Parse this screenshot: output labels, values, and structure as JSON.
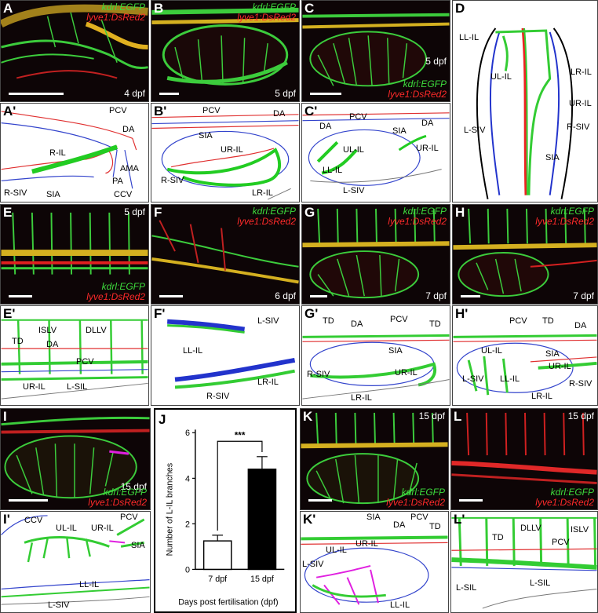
{
  "panels": {
    "A": {
      "label": "A",
      "stage": "4 dpf",
      "green": "kdrl:EGFP",
      "red": "lyve1:DsRed2"
    },
    "B": {
      "label": "B",
      "stage": "5 dpf",
      "green": "kdrl:EGFP",
      "red": "lyve1:DsRed2"
    },
    "C": {
      "label": "C",
      "stage": "5 dpf",
      "green": "kdrl:EGFP",
      "red": "lyve1:DsRed2"
    },
    "D": {
      "label": "D",
      "labels": [
        "LL-IL",
        "LR-IL",
        "UL-IL",
        "UR-IL",
        "R-SIV",
        "L-SIV",
        "SIA"
      ]
    },
    "A2": {
      "label": "A'",
      "labels": [
        "PCV",
        "DA",
        "R-IL",
        "AMA",
        "PA",
        "CCV",
        "R-SIV",
        "SIA"
      ]
    },
    "B2": {
      "label": "B'",
      "labels": [
        "PCV",
        "DA",
        "SIA",
        "UR-IL",
        "R-SIV",
        "LR-IL"
      ]
    },
    "C2": {
      "label": "C'",
      "labels": [
        "DA",
        "PCV",
        "SIA",
        "DA",
        "UL-IL",
        "UR-IL",
        "LL-IL",
        "L-SIV"
      ]
    },
    "E": {
      "label": "E",
      "stage": "5 dpf",
      "green": "kdrl:EGFP",
      "red": "lyve1:DsRed2"
    },
    "F": {
      "label": "F",
      "stage": "6 dpf",
      "green": "kdrl:EGFP",
      "red": "lyve1:DsRed2"
    },
    "G": {
      "label": "G",
      "stage": "7 dpf",
      "green": "kdrl:EGFP",
      "red": "lyve1:DsRed2"
    },
    "H": {
      "label": "H",
      "stage": "7 dpf",
      "green": "kdrl:EGFP",
      "red": "lyve1:DsRed2"
    },
    "E2": {
      "label": "E'",
      "labels": [
        "ISLV",
        "DLLV",
        "TD",
        "DA",
        "PCV",
        "UR-IL",
        "L-SIL"
      ]
    },
    "F2": {
      "label": "F'",
      "labels": [
        "L-SIV",
        "LL-IL",
        "R-SIV",
        "LR-IL"
      ]
    },
    "G2": {
      "label": "G'",
      "labels": [
        "TD",
        "DA",
        "PCV",
        "TD",
        "SIA",
        "UR-IL",
        "R-SIV",
        "LR-IL"
      ]
    },
    "H2": {
      "label": "H'",
      "labels": [
        "PCV",
        "TD",
        "DA",
        "UL-IL",
        "SIA",
        "UR-IL",
        "L-SIV",
        "LL-IL",
        "LR-IL",
        "R-SIV"
      ]
    },
    "I": {
      "label": "I",
      "stage": "15 dpf",
      "green": "kdrl:EGFP",
      "red": "lyve1:DsRed2"
    },
    "K": {
      "label": "K",
      "stage": "15 dpf",
      "green": "kdrl:EGFP",
      "red": "lyve1:DsRed2"
    },
    "L": {
      "label": "L",
      "stage": "15 dpf",
      "green": "kdrl:EGFP",
      "red": "lyve1:DsRed2"
    },
    "I2": {
      "label": "I'",
      "labels": [
        "CCV",
        "UL-IL",
        "UR-IL",
        "PCV",
        "SIA",
        "LL-IL",
        "L-SIV"
      ]
    },
    "K2": {
      "label": "K'",
      "labels": [
        "SIA",
        "DA",
        "PCV",
        "TD",
        "UR-IL",
        "UL-IL",
        "L-SIV",
        "LL-IL"
      ]
    },
    "L2": {
      "label": "L'",
      "labels": [
        "TD",
        "DLLV",
        "ISLV",
        "PCV",
        "L-SIL",
        "L-SIL"
      ]
    }
  },
  "chart_data": {
    "type": "bar",
    "panel_label": "J",
    "categories": [
      "7 dpf",
      "15 dpf"
    ],
    "values": [
      1.25,
      4.4
    ],
    "errors": [
      0.25,
      0.55
    ],
    "colors": [
      "#ffffff",
      "#000000"
    ],
    "ylabel": "Number of L-IL branches",
    "xlabel": "Days post fertilisation (dpf)",
    "ylim": [
      0,
      6
    ],
    "yticks": [
      0,
      2,
      4,
      6
    ],
    "significance": "***"
  }
}
